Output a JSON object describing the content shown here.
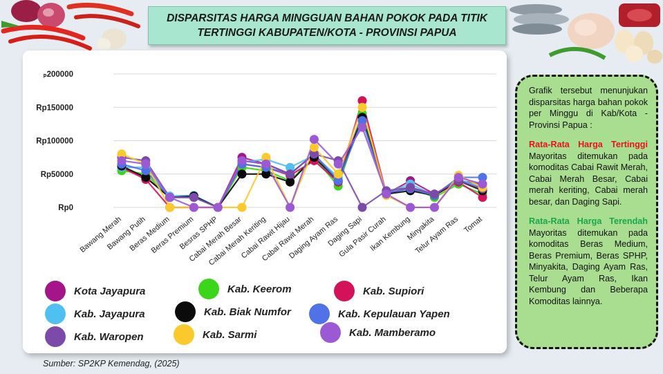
{
  "title": "DISPARSITAS HARGA MINGGUAN BAHAN POKOK PADA TITIK TERTINGGI KABUPATEN/KOTA - PROVINSI PAPUA",
  "source": "Sumber: SP2KP Kemendag, (2025)",
  "info": {
    "intro": "Grafik tersebut menunjukan disparsitas harga bahan pokok per Minggu di Kab/Kota - Provinsi Papua :",
    "highest_heading": "Rata-Rata Harga Tertinggi",
    "highest_text": "Mayoritas ditemukan pada komoditas Cabai Rawit Merah, Cabai Merah Besar, Cabai merah keriting, Cabai merah besar, dan Daging Sapi.",
    "lowest_heading": "Rata-Rata Harga Terendah",
    "lowest_text": "Mayoritas ditemukan pada komoditas Beras Medium, Beras Premium, Beras SPHP, Minyakita, Daging Ayam Ras, Telur Ayam Ras, Ikan Kembung dan Beberapa Komoditas lainnya."
  },
  "chart_data": {
    "type": "line",
    "ylim": [
      0,
      200000
    ],
    "y_ticks": [
      0,
      50000,
      100000,
      150000,
      200000
    ],
    "y_tick_labels": [
      "Rp0",
      "Rp50000",
      "Rp100000",
      "Rp150000",
      "ₚ200000"
    ],
    "categories": [
      "Bawang Merah",
      "Bawang Putih",
      "Beras Medium",
      "Beras Premium",
      "Besras SPHP",
      "Cabai Merah Besar",
      "Cabai Merah Keriting",
      "Cabai Rawit Hijau",
      "Cabai Rawit Merah",
      "Daging Ayam Ras",
      "Daging Sapi",
      "Gula Pasir Curah",
      "Ikan Kembung",
      "Minyakita",
      "Telur Ayam Ras",
      "Tomat"
    ],
    "series": [
      {
        "name": "Kota Jayapura",
        "color": "#a5158a",
        "values": [
          60000,
          45000,
          15000,
          17000,
          0,
          75000,
          65000,
          50000,
          80000,
          40000,
          140000,
          20000,
          40000,
          20000,
          40000,
          35000
        ]
      },
      {
        "name": "Kab. Keerom",
        "color": "#3bd61a",
        "values": [
          55000,
          50000,
          15000,
          15000,
          0,
          60000,
          55000,
          40000,
          75000,
          32000,
          140000,
          20000,
          30000,
          15000,
          35000,
          20000
        ]
      },
      {
        "name": "Kab. Supiori",
        "color": "#d4125a",
        "values": [
          60000,
          42000,
          0,
          0,
          0,
          65000,
          60000,
          48000,
          70000,
          38000,
          160000,
          20000,
          30000,
          18000,
          38000,
          15000
        ]
      },
      {
        "name": "Kab. Jayapura",
        "color": "#4fc0ef",
        "values": [
          60000,
          60000,
          17000,
          18000,
          0,
          68000,
          72000,
          60000,
          78000,
          45000,
          130000,
          22000,
          35000,
          18000,
          42000,
          30000
        ]
      },
      {
        "name": "Kab. Biak Numfor",
        "color": "#0b0b0b",
        "values": [
          62000,
          45000,
          15000,
          17000,
          0,
          50000,
          50000,
          38000,
          75000,
          40000,
          135000,
          20000,
          25000,
          18000,
          40000,
          25000
        ]
      },
      {
        "name": "Kab. Kepulauan Yapen",
        "color": "#4f72e6",
        "values": [
          65000,
          55000,
          15000,
          15000,
          0,
          65000,
          60000,
          50000,
          80000,
          40000,
          130000,
          22000,
          28000,
          18000,
          45000,
          45000
        ]
      },
      {
        "name": "Kab. Waropen",
        "color": "#7c4ba8",
        "values": [
          75000,
          70000,
          15000,
          15000,
          0,
          70000,
          65000,
          50000,
          80000,
          70000,
          0,
          25000,
          30000,
          20000,
          40000,
          28000
        ]
      },
      {
        "name": "Kab. Sarmi",
        "color": "#fbc92c",
        "values": [
          80000,
          65000,
          0,
          0,
          0,
          0,
          75000,
          0,
          90000,
          50000,
          150000,
          18000,
          0,
          0,
          48000,
          30000
        ]
      },
      {
        "name": "Kab. Mamberamo",
        "color": "#9c59d4",
        "values": [
          70000,
          65000,
          15000,
          0,
          0,
          70000,
          65000,
          0,
          102000,
          65000,
          120000,
          20000,
          0,
          0,
          45000,
          35000
        ]
      }
    ]
  }
}
